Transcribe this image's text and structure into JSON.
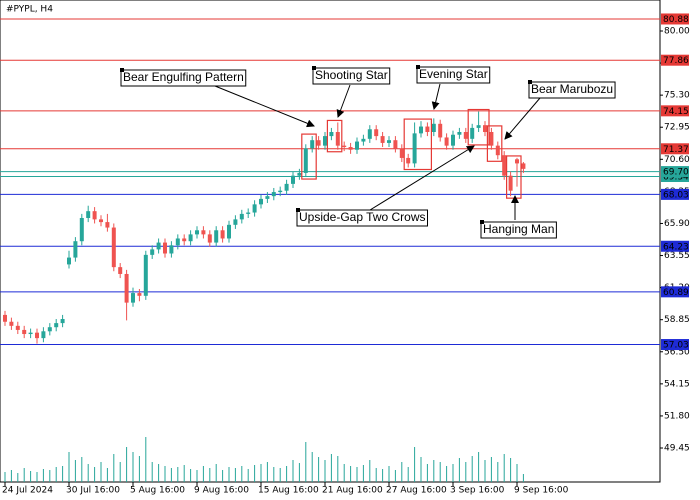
{
  "chart_data": {
    "type": "candlestick",
    "title": "#PYPL, H4",
    "categories": [
      "24 Jul 2024",
      null,
      null,
      null,
      null,
      null,
      null,
      null,
      null,
      null,
      "30 Jul 16:00",
      null,
      null,
      null,
      null,
      null,
      null,
      null,
      null,
      null,
      "5 Aug 16:00",
      null,
      null,
      null,
      null,
      null,
      null,
      null,
      null,
      null,
      "9 Aug 16:00",
      null,
      null,
      null,
      null,
      null,
      null,
      null,
      null,
      null,
      "15 Aug 16:00",
      null,
      null,
      null,
      null,
      null,
      null,
      null,
      null,
      null,
      "21 Aug 16:00",
      null,
      null,
      null,
      null,
      null,
      null,
      null,
      null,
      null,
      "27 Aug 16:00",
      null,
      null,
      null,
      null,
      null,
      null,
      null,
      null,
      null,
      "3 Sep 16:00",
      null,
      null,
      null,
      null,
      null,
      null,
      null,
      null,
      null,
      "9 Sep 16:00",
      null
    ],
    "open": [
      59.2,
      58.7,
      58.4,
      58.1,
      57.8,
      57.9,
      57.5,
      58.0,
      58.3,
      58.6,
      62.9,
      63.4,
      64.6,
      66.3,
      66.8,
      66.2,
      66.0,
      65.6,
      62.7,
      62.2,
      60.1,
      60.8,
      60.6,
      63.6,
      64.0,
      64.5,
      63.7,
      64.3,
      64.8,
      64.6,
      65.1,
      65.4,
      65.1,
      64.5,
      65.4,
      64.8,
      65.8,
      66.2,
      66.6,
      66.7,
      67.3,
      67.7,
      67.9,
      68.2,
      68.3,
      68.8,
      69.4,
      69.6,
      71.4,
      72.0,
      71.6,
      72.3,
      72.6,
      71.6,
      71.5,
      71.3,
      71.9,
      72.1,
      72.8,
      72.3,
      71.8,
      72.0,
      71.4,
      70.7,
      70.3,
      72.5,
      73.0,
      72.6,
      73.2,
      72.2,
      71.6,
      72.4,
      72.6,
      72.1,
      72.9,
      73.1,
      72.6,
      71.6,
      70.9,
      69.4,
      70.6,
      70.3
    ],
    "high": [
      59.5,
      59.0,
      58.7,
      58.4,
      58.2,
      58.2,
      58.3,
      58.6,
      58.9,
      59.2,
      63.9,
      64.9,
      66.6,
      67.2,
      67.1,
      66.5,
      66.6,
      65.9,
      63.0,
      62.5,
      61.2,
      61.1,
      63.9,
      64.3,
      64.8,
      64.8,
      64.6,
      65.1,
      65.1,
      65.4,
      65.7,
      65.7,
      65.4,
      65.7,
      65.7,
      66.1,
      66.5,
      66.9,
      67.0,
      67.6,
      68.0,
      68.2,
      68.5,
      68.6,
      69.1,
      69.7,
      69.9,
      71.7,
      72.3,
      72.3,
      72.6,
      72.9,
      73.3,
      71.9,
      71.8,
      72.2,
      72.4,
      73.1,
      73.1,
      72.6,
      72.3,
      72.3,
      71.7,
      71.0,
      73.3,
      73.4,
      73.3,
      73.6,
      73.5,
      72.5,
      72.7,
      72.9,
      72.9,
      73.2,
      74.1,
      73.4,
      72.9,
      71.9,
      71.2,
      69.7,
      70.7,
      70.4
    ],
    "low": [
      58.4,
      58.1,
      57.8,
      57.5,
      57.5,
      57.1,
      57.2,
      57.7,
      58.0,
      58.3,
      62.6,
      63.1,
      64.3,
      66.0,
      65.9,
      65.7,
      65.3,
      62.4,
      61.9,
      58.8,
      59.8,
      60.2,
      60.3,
      63.3,
      63.7,
      63.4,
      63.4,
      64.0,
      64.3,
      64.3,
      64.8,
      64.8,
      64.2,
      64.2,
      64.5,
      64.5,
      65.5,
      65.9,
      66.3,
      66.4,
      67.0,
      67.4,
      67.6,
      67.9,
      68.0,
      68.5,
      69.1,
      69.3,
      71.1,
      71.3,
      71.3,
      72.0,
      71.3,
      71.2,
      71.0,
      71.0,
      71.6,
      71.8,
      72.0,
      71.5,
      71.5,
      71.1,
      70.4,
      70.0,
      70.0,
      72.2,
      72.3,
      72.3,
      71.9,
      71.3,
      71.3,
      72.1,
      71.8,
      71.8,
      72.6,
      72.3,
      71.3,
      70.6,
      69.1,
      67.9,
      68.6,
      69.6
    ],
    "close": [
      58.7,
      58.4,
      58.1,
      57.8,
      57.9,
      57.5,
      58.0,
      58.3,
      58.6,
      58.9,
      63.4,
      64.6,
      66.3,
      66.8,
      66.2,
      66.0,
      65.6,
      62.7,
      62.2,
      60.1,
      60.8,
      60.6,
      63.6,
      64.0,
      64.5,
      63.7,
      64.3,
      64.8,
      64.6,
      65.1,
      65.4,
      65.1,
      64.5,
      65.4,
      64.8,
      65.8,
      66.2,
      66.6,
      66.7,
      67.3,
      67.7,
      67.9,
      68.2,
      68.3,
      68.8,
      69.4,
      69.6,
      71.4,
      72.0,
      71.6,
      72.3,
      72.6,
      71.6,
      71.5,
      71.3,
      71.9,
      72.1,
      72.8,
      72.3,
      71.8,
      72.0,
      71.4,
      70.7,
      70.3,
      72.5,
      73.0,
      72.6,
      73.2,
      72.2,
      71.6,
      72.4,
      72.6,
      72.1,
      72.9,
      73.1,
      72.6,
      71.6,
      70.9,
      69.4,
      68.3,
      70.3,
      69.9
    ],
    "volume": [
      10,
      12,
      9,
      14,
      11,
      10,
      13,
      12,
      15,
      16,
      30,
      22,
      25,
      18,
      15,
      20,
      14,
      28,
      20,
      35,
      30,
      26,
      45,
      20,
      18,
      16,
      14,
      15,
      17,
      13,
      12,
      16,
      14,
      18,
      12,
      15,
      14,
      16,
      13,
      17,
      18,
      20,
      15,
      14,
      16,
      22,
      19,
      40,
      30,
      25,
      22,
      28,
      26,
      18,
      16,
      15,
      17,
      22,
      14,
      13,
      16,
      12,
      20,
      15,
      35,
      25,
      18,
      22,
      20,
      16,
      18,
      24,
      20,
      26,
      30,
      22,
      25,
      20,
      28,
      24,
      18,
      8
    ],
    "up_color": "#26a69a",
    "down_color": "#ef5350",
    "volume_color": "#26a69a",
    "ylim": [
      46.96,
      82.27
    ],
    "yticks": [
      {
        "value": 49.45,
        "label": "49.45"
      },
      {
        "value": 51.8,
        "label": "51.80"
      },
      {
        "value": 54.15,
        "label": "54.15"
      },
      {
        "value": 56.5,
        "label": "56.50"
      },
      {
        "value": 58.85,
        "label": "58.85"
      },
      {
        "value": 61.2,
        "label": "61.20"
      },
      {
        "value": 63.55,
        "label": "63.55"
      },
      {
        "value": 65.9,
        "label": "65.90"
      },
      {
        "value": 68.25,
        "label": "68.25"
      },
      {
        "value": 70.6,
        "label": "70.60"
      },
      {
        "value": 72.95,
        "label": "72.95"
      },
      {
        "value": 75.3,
        "label": "75.30"
      },
      {
        "value": 77.65,
        "label": "77.65"
      },
      {
        "value": 80,
        "label": "80.00"
      }
    ],
    "levels": [
      {
        "value": 80.88,
        "label": "80.88",
        "color": "#e53935"
      },
      {
        "value": 77.86,
        "label": "77.86",
        "color": "#e53935"
      },
      {
        "value": 74.15,
        "label": "74.15",
        "color": "#e53935"
      },
      {
        "value": 71.37,
        "label": "71.37",
        "color": "#e53935"
      },
      {
        "value": 69.34,
        "label": "69.34",
        "color": "#26a69a"
      },
      {
        "value": 69.7,
        "label": "69.70",
        "color": "#26a69a"
      },
      {
        "value": 68.03,
        "label": "68.03",
        "color": "#1e2bd6"
      },
      {
        "value": 64.23,
        "label": "64.23",
        "color": "#1e2bd6"
      },
      {
        "value": 60.89,
        "label": "60.89",
        "color": "#1e2bd6"
      },
      {
        "value": 57.03,
        "label": "57.03",
        "color": "#1e2bd6"
      }
    ],
    "annotations": [
      "Bear Engulfing Pattern",
      "Shooting Star",
      "Evening Star",
      "Bear Marubozu",
      "Upside-Gap Two Crows",
      "Hanging Man"
    ]
  }
}
